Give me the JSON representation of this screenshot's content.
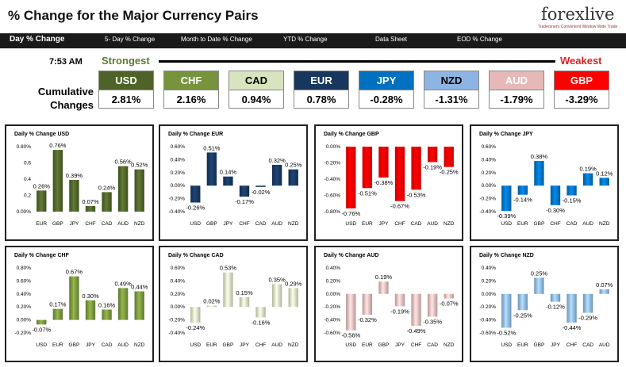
{
  "header": {
    "title": "% Change for the Major Currency Pairs",
    "logo_text": "forexlive",
    "logo_tagline": "Tradersnet's Convenient Window Wide Trade"
  },
  "nav": {
    "items": [
      "Day % Change",
      "5- Day % Change",
      "Month to Date % Change",
      "YTD % Change",
      "Data Sheet",
      "EOD % Change"
    ]
  },
  "summary": {
    "time": "7:53 AM",
    "strongest_label": "Strongest",
    "weakest_label": "Weakest",
    "cumulative_label_line1": "Cumulative",
    "cumulative_label_line2": "Changes",
    "currencies": [
      {
        "code": "USD",
        "value": "2.81%",
        "color": "#4f6228",
        "text_color": "#ffffff"
      },
      {
        "code": "CHF",
        "value": "2.16%",
        "color": "#77933c",
        "text_color": "#ffffff"
      },
      {
        "code": "CAD",
        "value": "0.94%",
        "color": "#d7e4bd",
        "text_color": "#000000"
      },
      {
        "code": "EUR",
        "value": "0.78%",
        "color": "#17375e",
        "text_color": "#ffffff"
      },
      {
        "code": "JPY",
        "value": "-0.28%",
        "color": "#0070c0",
        "text_color": "#ffffff"
      },
      {
        "code": "NZD",
        "value": "-1.31%",
        "color": "#8db4e2",
        "text_color": "#000000"
      },
      {
        "code": "AUD",
        "value": "-1.79%",
        "color": "#e6b9b8",
        "text_color": "#ffffff"
      },
      {
        "code": "GBP",
        "value": "-3.29%",
        "color": "#ff0000",
        "text_color": "#ffffff"
      }
    ]
  },
  "chart_data": [
    {
      "type": "bar",
      "title": "Daily % Change USD",
      "categories": [
        "EUR",
        "GBP",
        "JPY",
        "CHF",
        "CAD",
        "AUD",
        "NZD"
      ],
      "values": [
        0.26,
        0.76,
        0.39,
        0.07,
        0.24,
        0.56,
        0.52
      ],
      "labels": [
        "0.26%",
        "0.76%",
        "0.39%",
        "0.07%",
        "0.24%",
        "0.56%",
        "0.52%"
      ],
      "ylim": [
        0,
        0.8
      ],
      "yticks": [
        "0.00%",
        "0.2",
        "0.4",
        "0.6",
        "0.80%"
      ],
      "ytick_values": [
        0,
        0.2,
        0.4,
        0.6,
        0.8
      ],
      "color": "#4f6228"
    },
    {
      "type": "bar",
      "title": "Daily % Change EUR",
      "categories": [
        "USD",
        "GBP",
        "JPY",
        "CHF",
        "CAD",
        "AUD",
        "NZD"
      ],
      "values": [
        -0.26,
        0.51,
        0.14,
        -0.17,
        -0.02,
        0.32,
        0.25
      ],
      "labels": [
        "-0.26%",
        "0.51%",
        "0.14%",
        "-0.17%",
        "-0.02%",
        "0.32%",
        "0.25%"
      ],
      "ylim": [
        -0.4,
        0.6
      ],
      "yticks": [
        "-0.40%",
        "-0.20%",
        "0.00%",
        "0.20%",
        "0.40%",
        "0.60%"
      ],
      "ytick_values": [
        -0.4,
        -0.2,
        0,
        0.2,
        0.4,
        0.6
      ],
      "color": "#17375e"
    },
    {
      "type": "bar",
      "title": "Daily % Change GBP",
      "categories": [
        "USD",
        "EUR",
        "JPY",
        "CHF",
        "CAD",
        "AUD",
        "NZD"
      ],
      "values": [
        -0.76,
        -0.51,
        -0.38,
        -0.67,
        -0.53,
        -0.19,
        -0.25
      ],
      "labels": [
        "-0.76%",
        "-0.51%",
        "-0.38%",
        "-0.67%",
        "-0.53%",
        "-0.19%",
        "-0.25%"
      ],
      "ylim": [
        -0.8,
        0
      ],
      "yticks": [
        "-0.80%",
        "-0.60%",
        "-0.40%",
        "-0.20%",
        "0.00%"
      ],
      "ytick_values": [
        -0.8,
        -0.6,
        -0.4,
        -0.2,
        0
      ],
      "color": "#ff0000"
    },
    {
      "type": "bar",
      "title": "Daily % Change JPY",
      "categories": [
        "USD",
        "EUR",
        "GBP",
        "CHF",
        "CAD",
        "AUD",
        "NZD"
      ],
      "values": [
        -0.39,
        -0.14,
        0.38,
        -0.3,
        -0.15,
        0.19,
        0.12
      ],
      "labels": [
        "-0.39%",
        "-0.14%",
        "0.38%",
        "-0.30%",
        "-0.15%",
        "0.19%",
        "0.12%"
      ],
      "ylim": [
        -0.4,
        0.6
      ],
      "yticks": [
        "-0.40%",
        "-0.20%",
        "0.00%",
        "0.20%",
        "0.40%",
        "0.60%"
      ],
      "ytick_values": [
        -0.4,
        -0.2,
        0,
        0.2,
        0.4,
        0.6
      ],
      "color": "#0070c0"
    },
    {
      "type": "bar",
      "title": "Daily % Change CHF",
      "categories": [
        "USD",
        "EUR",
        "GBP",
        "JPY",
        "CAD",
        "AUD",
        "NZD"
      ],
      "values": [
        -0.07,
        0.17,
        0.67,
        0.3,
        0.16,
        0.49,
        0.44
      ],
      "labels": [
        "-0.07%",
        "0.17%",
        "0.67%",
        "0.30%",
        "0.16%",
        "0.49%",
        "0.44%"
      ],
      "ylim": [
        -0.2,
        0.8
      ],
      "yticks": [
        "-0.20%",
        "0.00%",
        "0.20%",
        "0.40%",
        "0.60%",
        "0.80%"
      ],
      "ytick_values": [
        -0.2,
        0,
        0.2,
        0.4,
        0.6,
        0.8
      ],
      "color": "#77933c"
    },
    {
      "type": "bar",
      "title": "Daily % Change CAD",
      "categories": [
        "USD",
        "EUR",
        "GBP",
        "JPY",
        "CHF",
        "AUD",
        "NZD"
      ],
      "values": [
        -0.24,
        0.02,
        0.53,
        0.15,
        -0.16,
        0.35,
        0.29
      ],
      "labels": [
        "-0.24%",
        "0.02%",
        "0.53%",
        "0.15%",
        "-0.16%",
        "0.35%",
        "0.29%"
      ],
      "ylim": [
        -0.4,
        0.6
      ],
      "yticks": [
        "-0.40%",
        "-0.20%",
        "0.00%",
        "0.20%",
        "0.40%",
        "0.60%"
      ],
      "ytick_values": [
        -0.4,
        -0.2,
        0,
        0.2,
        0.4,
        0.6
      ],
      "color": "#d7e4bd"
    },
    {
      "type": "bar",
      "title": "Daily % Change AUD",
      "categories": [
        "USD",
        "EUR",
        "GBP",
        "JPY",
        "CHF",
        "CAD",
        "NZD"
      ],
      "values": [
        -0.56,
        -0.32,
        0.19,
        -0.19,
        -0.49,
        -0.35,
        -0.07
      ],
      "labels": [
        "-0.56%",
        "-0.32%",
        "0.19%",
        "-0.19%",
        "-0.49%",
        "-0.35%",
        "-0.07%"
      ],
      "ylim": [
        -0.6,
        0.4
      ],
      "yticks": [
        "-0.60%",
        "-0.40%",
        "-0.20%",
        "0.00%",
        "0.20%",
        "0.40%"
      ],
      "ytick_values": [
        -0.6,
        -0.4,
        -0.2,
        0,
        0.2,
        0.4
      ],
      "color": "#e6b9b8"
    },
    {
      "type": "bar",
      "title": "Daily % Change NZD",
      "categories": [
        "USD",
        "EUR",
        "GBP",
        "JPY",
        "CHF",
        "CAD",
        "AUD"
      ],
      "values": [
        -0.52,
        -0.25,
        0.25,
        -0.12,
        -0.44,
        -0.29,
        0.07
      ],
      "labels": [
        "-0.52%",
        "-0.25%",
        "0.25%",
        "-0.12%",
        "-0.44%",
        "-0.29%",
        "0.07%"
      ],
      "ylim": [
        -0.6,
        0.4
      ],
      "yticks": [
        "-0.60%",
        "-0.40%",
        "-0.20%",
        "0.00%",
        "0.20%",
        "0.40%"
      ],
      "ytick_values": [
        -0.6,
        -0.4,
        -0.2,
        0,
        0.2,
        0.4
      ],
      "color": "#8db4e2"
    }
  ]
}
